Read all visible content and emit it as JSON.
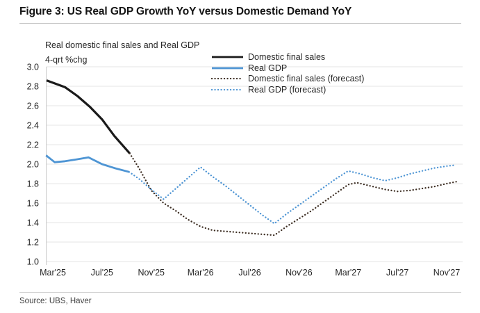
{
  "header": {
    "title": "Figure 3: US Real GDP Growth YoY versus Domestic Demand YoY"
  },
  "chart": {
    "subtitle_line1": "Real domestic final sales and Real GDP",
    "subtitle_line2": "4-qrt %chg"
  },
  "footer": {
    "source": "Source: UBS, Haver"
  },
  "chart_data": {
    "type": "line",
    "title": "Figure 3: US Real GDP Growth YoY versus Domestic Demand YoY",
    "subtitle": "Real domestic final sales and Real GDP, 4-qrt %chg",
    "x_unit": "months since Mar'25",
    "x_tick_labels": [
      "Mar'25",
      "Jul'25",
      "Nov'25",
      "Mar'26",
      "Jul'26",
      "Nov'26",
      "Mar'27",
      "Jul'27",
      "Nov'27"
    ],
    "x_tick_months": [
      0,
      4,
      8,
      12,
      16,
      20,
      24,
      28,
      32
    ],
    "ylim": [
      1.0,
      3.0
    ],
    "y_tick_step": 0.2,
    "grid": "horizontal",
    "legend_position": "top-center",
    "gridline_color": "#e4e4e4",
    "axis_color": "#c9c9c9",
    "series": [
      {
        "name": "Domestic final sales",
        "style": "solid",
        "color": "#1a1a1a",
        "width": 3.2,
        "points": [
          [
            -0.5,
            2.86
          ],
          [
            1,
            2.79
          ],
          [
            2,
            2.7
          ],
          [
            3,
            2.59
          ],
          [
            4,
            2.46
          ],
          [
            5,
            2.29
          ],
          [
            6.25,
            2.11
          ]
        ]
      },
      {
        "name": "Real GDP",
        "style": "solid",
        "color": "#4e95d4",
        "width": 2.8,
        "points": [
          [
            -0.55,
            2.09
          ],
          [
            0.15,
            2.02
          ],
          [
            1,
            2.03
          ],
          [
            2,
            2.05
          ],
          [
            2.9,
            2.07
          ],
          [
            4,
            2.0
          ],
          [
            5,
            1.96
          ],
          [
            6.2,
            1.92
          ]
        ]
      },
      {
        "name": "Domestic final sales (forecast)",
        "style": "dotted",
        "color": "#3d2e23",
        "width": 2.3,
        "points": [
          [
            6.25,
            2.11
          ],
          [
            7,
            1.96
          ],
          [
            8,
            1.73
          ],
          [
            9,
            1.6
          ],
          [
            10,
            1.52
          ],
          [
            11,
            1.43
          ],
          [
            12,
            1.36
          ],
          [
            13,
            1.32
          ],
          [
            14,
            1.31
          ],
          [
            15,
            1.3
          ],
          [
            16,
            1.29
          ],
          [
            17,
            1.28
          ],
          [
            18,
            1.27
          ],
          [
            19,
            1.36
          ],
          [
            20,
            1.44
          ],
          [
            21,
            1.52
          ],
          [
            22,
            1.61
          ],
          [
            23,
            1.7
          ],
          [
            24,
            1.79
          ],
          [
            24.7,
            1.81
          ],
          [
            26,
            1.77
          ],
          [
            27,
            1.74
          ],
          [
            28,
            1.72
          ],
          [
            29,
            1.73
          ],
          [
            30,
            1.75
          ],
          [
            31,
            1.77
          ],
          [
            32,
            1.8
          ],
          [
            32.8,
            1.82
          ]
        ]
      },
      {
        "name": "Real GDP (forecast)",
        "style": "dotted",
        "color": "#4e95d4",
        "width": 2.3,
        "points": [
          [
            6.2,
            1.92
          ],
          [
            7,
            1.85
          ],
          [
            8,
            1.74
          ],
          [
            9,
            1.64
          ],
          [
            10,
            1.75
          ],
          [
            11,
            1.86
          ],
          [
            12,
            1.97
          ],
          [
            13,
            1.87
          ],
          [
            14,
            1.78
          ],
          [
            15,
            1.68
          ],
          [
            16,
            1.58
          ],
          [
            17,
            1.48
          ],
          [
            18,
            1.39
          ],
          [
            19,
            1.49
          ],
          [
            20,
            1.58
          ],
          [
            21,
            1.67
          ],
          [
            22,
            1.76
          ],
          [
            23,
            1.85
          ],
          [
            24,
            1.93
          ],
          [
            25,
            1.9
          ],
          [
            26,
            1.86
          ],
          [
            27,
            1.83
          ],
          [
            28,
            1.86
          ],
          [
            29,
            1.9
          ],
          [
            30,
            1.93
          ],
          [
            31,
            1.96
          ],
          [
            32,
            1.98
          ],
          [
            32.7,
            1.99
          ]
        ]
      }
    ]
  }
}
